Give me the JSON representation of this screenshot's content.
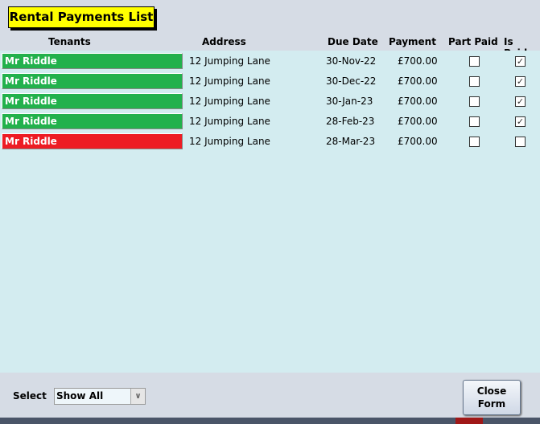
{
  "title": "Rental Payments List",
  "columns": {
    "tenants": "Tenants",
    "address": "Address",
    "due_date": "Due Date",
    "payment": "Payment",
    "part_paid": "Part Paid",
    "is_paid": "Is Paid"
  },
  "rows": [
    {
      "tenant": "Mr Riddle",
      "address": "12 Jumping Lane",
      "due_date": "30-Nov-22",
      "payment": "£700.00",
      "part_paid": false,
      "is_paid": true,
      "status_color": "#22b14c"
    },
    {
      "tenant": "Mr Riddle",
      "address": "12 Jumping Lane",
      "due_date": "30-Dec-22",
      "payment": "£700.00",
      "part_paid": false,
      "is_paid": true,
      "status_color": "#22b14c"
    },
    {
      "tenant": "Mr Riddle",
      "address": "12 Jumping Lane",
      "due_date": "30-Jan-23",
      "payment": "£700.00",
      "part_paid": false,
      "is_paid": true,
      "status_color": "#22b14c"
    },
    {
      "tenant": "Mr Riddle",
      "address": "12 Jumping Lane",
      "due_date": "28-Feb-23",
      "payment": "£700.00",
      "part_paid": false,
      "is_paid": true,
      "status_color": "#22b14c"
    },
    {
      "tenant": "Mr Riddle",
      "address": "12 Jumping Lane",
      "due_date": "28-Mar-23",
      "payment": "£700.00",
      "part_paid": false,
      "is_paid": false,
      "status_color": "#ed1c24"
    }
  ],
  "footer": {
    "select_label": "Select",
    "select_value": "Show All",
    "close_label_1": "Close",
    "close_label_2": "Form"
  }
}
